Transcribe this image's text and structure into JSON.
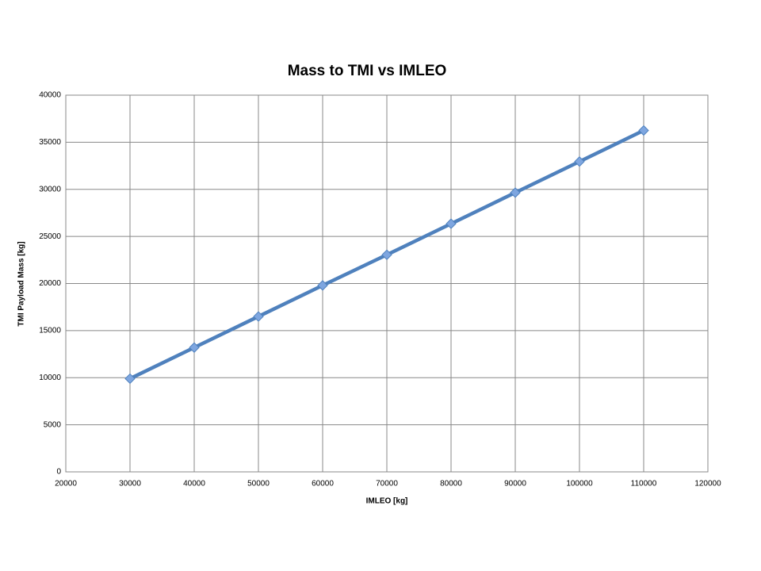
{
  "chart_data": {
    "type": "line",
    "title": "Mass to TMI vs IMLEO",
    "x_label": "IMLEO [kg]",
    "y_label": "TMI Payload Mass [kg]",
    "x": [
      30000,
      40000,
      50000,
      60000,
      70000,
      80000,
      90000,
      100000,
      110000
    ],
    "values": [
      9900,
      13200,
      16500,
      19800,
      23050,
      26350,
      29650,
      32950,
      36250
    ],
    "color": "#4f81bd",
    "marker_color": "#7ea6e0",
    "xlim": [
      20000,
      120000
    ],
    "xticks": [
      20000,
      30000,
      40000,
      50000,
      60000,
      70000,
      80000,
      90000,
      100000,
      110000,
      120000
    ],
    "ylim": [
      0,
      40000
    ],
    "yticks": [
      0,
      5000,
      10000,
      15000,
      20000,
      25000,
      30000,
      35000,
      40000
    ],
    "grid": true
  }
}
